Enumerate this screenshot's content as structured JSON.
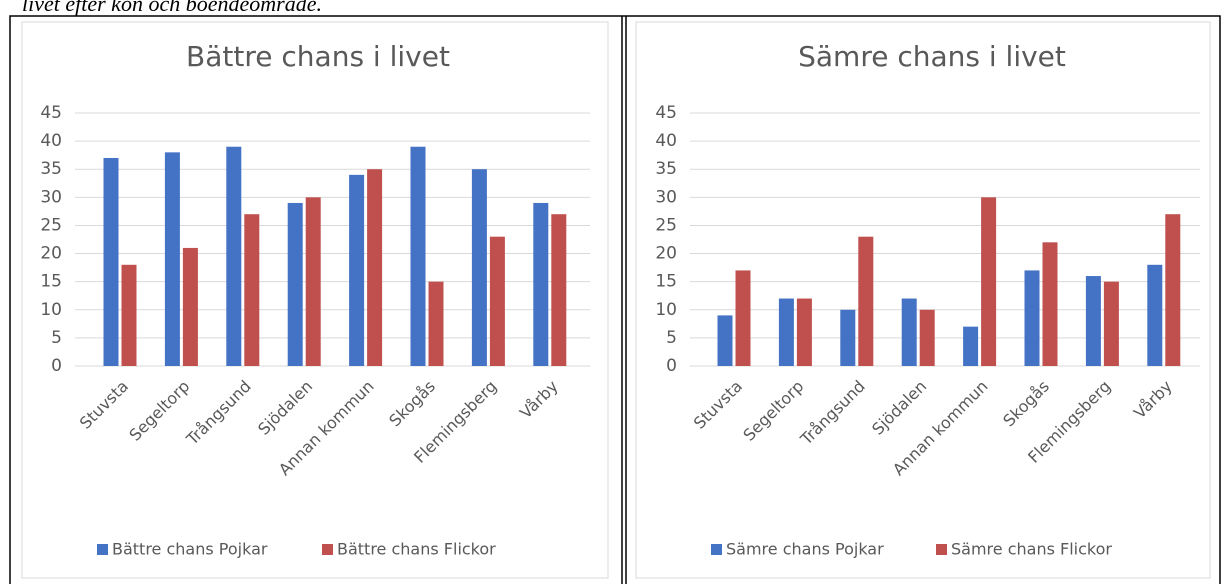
{
  "caption": "livet efter kön och boendeområde.",
  "chart_data": [
    {
      "type": "bar",
      "title": "Bättre chans i livet",
      "categories": [
        "Stuvsta",
        "Segeltorp",
        "Trångsund",
        "Sjödalen",
        "Annan kommun",
        "Skogås",
        "Flemingsberg",
        "Vårby"
      ],
      "series": [
        {
          "name": "Bättre chans Pojkar",
          "color": "#4472c4",
          "values": [
            37,
            38,
            39,
            29,
            34,
            39,
            35,
            29
          ]
        },
        {
          "name": "Bättre chans Flickor",
          "color": "#c0504d",
          "values": [
            18,
            21,
            27,
            30,
            35,
            15,
            23,
            27
          ]
        }
      ],
      "ylim": [
        0,
        45
      ],
      "yticks": [
        0,
        5,
        10,
        15,
        20,
        25,
        30,
        35,
        40,
        45
      ],
      "grid": true,
      "legend": "bottom"
    },
    {
      "type": "bar",
      "title": "Sämre chans i livet",
      "categories": [
        "Stuvsta",
        "Segeltorp",
        "Trångsund",
        "Sjödalen",
        "Annan kommun",
        "Skogås",
        "Flemingsberg",
        "Vårby"
      ],
      "series": [
        {
          "name": "Sämre chans Pojkar",
          "color": "#4472c4",
          "values": [
            9,
            12,
            10,
            12,
            7,
            17,
            16,
            18
          ]
        },
        {
          "name": "Sämre chans Flickor",
          "color": "#c0504d",
          "values": [
            17,
            12,
            23,
            10,
            30,
            22,
            15,
            27
          ]
        }
      ],
      "ylim": [
        0,
        45
      ],
      "yticks": [
        0,
        5,
        10,
        15,
        20,
        25,
        30,
        35,
        40,
        45
      ],
      "grid": true,
      "legend": "bottom"
    }
  ]
}
